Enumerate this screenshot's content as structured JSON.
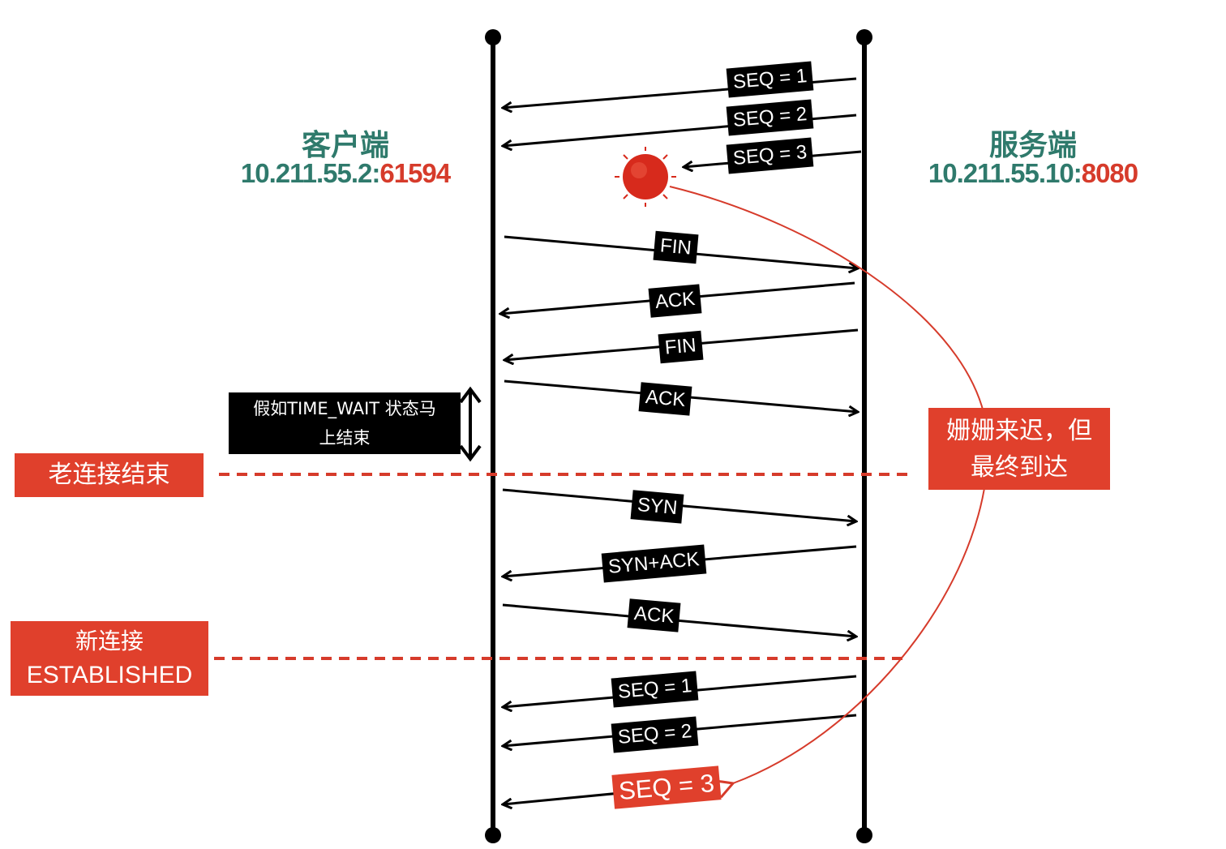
{
  "client": {
    "name": "客户端",
    "ip": "10.211.55.2:",
    "port": "61594"
  },
  "server": {
    "name": "服务端",
    "ip": "10.211.55.10:",
    "port": "8080"
  },
  "packets": {
    "seq1_old": "SEQ = 1",
    "seq2_old": "SEQ = 2",
    "seq3_old": "SEQ = 3",
    "fin1": "FIN",
    "ack1": "ACK",
    "fin2": "FIN",
    "ack2": "ACK",
    "syn": "SYN",
    "synack": "SYN+ACK",
    "ack3": "ACK",
    "seq1_new": "SEQ = 1",
    "seq2_new": "SEQ = 2",
    "seq3_new": "SEQ = 3"
  },
  "notes": {
    "time_wait_line1": "假如TIME_WAIT 状态马",
    "time_wait_line2": "上结束",
    "old_conn_end": "老连接结束",
    "new_conn_line1": "新连接",
    "new_conn_line2": "ESTABLISHED",
    "late_line1": "姗姗来迟，但",
    "late_line2": "最终到达"
  },
  "colors": {
    "accent_red": "#e0402c",
    "teal": "#2f7a6c",
    "line": "#000000"
  }
}
